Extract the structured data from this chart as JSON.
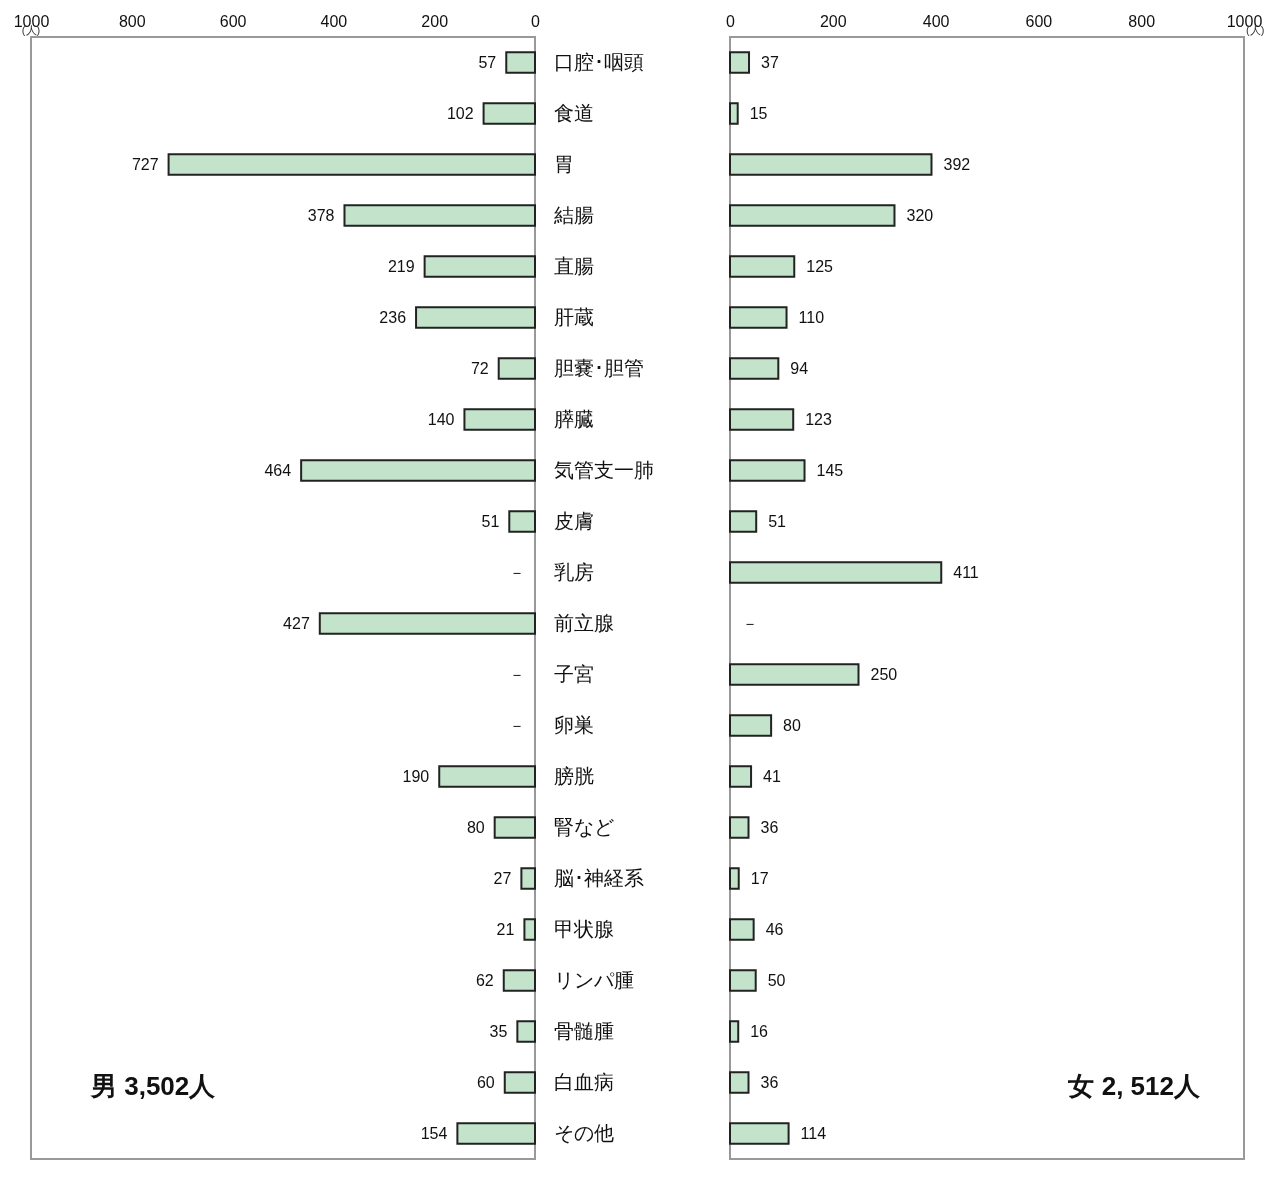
{
  "chart_data": [
    {
      "type": "bar",
      "orientation": "horizontal",
      "xlabel": "(人)",
      "categories": [
        "口腔･咽頭",
        "食道",
        "胃",
        "結腸",
        "直腸",
        "肝蔵",
        "胆嚢･胆管",
        "膵臓",
        "気管支一肺",
        "皮膚",
        "乳房",
        "前立腺",
        "子宮",
        "卵巣",
        "膀胱",
        "腎など",
        "脳･神経系",
        "甲状腺",
        "リンパ腫",
        "骨髄腫",
        "白血病",
        "その他"
      ],
      "values": [
        57,
        102,
        727,
        378,
        219,
        236,
        72,
        140,
        464,
        51,
        null,
        427,
        null,
        null,
        190,
        80,
        27,
        21,
        62,
        35,
        60,
        154
      ],
      "value_labels": [
        "57",
        "102",
        "727",
        "378",
        "219",
        "236",
        "72",
        "140",
        "464",
        "51",
        "－",
        "427",
        "－",
        "－",
        "190",
        "80",
        "27",
        "21",
        "62",
        "35",
        "60",
        "154"
      ],
      "color": "#c3e4cb",
      "xlim": [
        1000,
        0
      ],
      "xticks": [
        1000,
        800,
        600,
        400,
        200,
        0
      ],
      "grid": false,
      "annotations": [
        "男 3,502人"
      ]
    },
    {
      "type": "bar",
      "orientation": "horizontal",
      "xlabel": "(人)",
      "tick_labels": "x",
      "categories": [
        "口腔･咽頭",
        "食道",
        "胃",
        "結腸",
        "直腸",
        "肝蔵",
        "胆嚢･胆管",
        "膵臓",
        "気管支一肺",
        "皮膚",
        "乳房",
        "前立腺",
        "子宮",
        "卵巣",
        "膀胱",
        "腎など",
        "脳･神経系",
        "甲状腺",
        "リンパ腫",
        "骨髄腫",
        "白血病",
        "その他"
      ],
      "values": [
        37,
        15,
        392,
        320,
        125,
        110,
        94,
        123,
        145,
        51,
        411,
        null,
        250,
        80,
        41,
        36,
        17,
        46,
        50,
        16,
        36,
        114
      ],
      "value_labels": [
        "37",
        "15",
        "392",
        "320",
        "125",
        "110",
        "94",
        "123",
        "145",
        "51",
        "411",
        "－",
        "250",
        "80",
        "41",
        "36",
        "17",
        "46",
        "50",
        "16",
        "36",
        "114"
      ],
      "color": "#c3e4cb",
      "xlim": [
        0,
        1000
      ],
      "xticks": [
        0,
        200,
        400,
        600,
        800,
        1000
      ],
      "grid": false,
      "annotations": [
        "女 2, 512人"
      ]
    }
  ]
}
